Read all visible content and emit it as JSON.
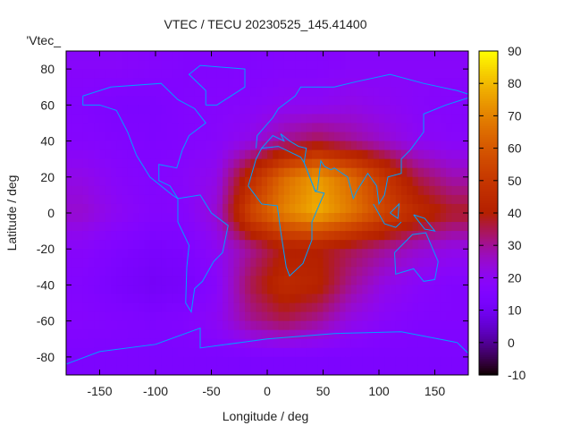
{
  "chart_data": {
    "type": "heatmap",
    "title": "VTEC / TECU 20230525_145.41400",
    "xlabel": "Longitude / deg",
    "ylabel": "Latitude / deg",
    "legend_label": "'Vtec_",
    "legend_placement": "top-left",
    "xlim": [
      -180,
      180
    ],
    "ylim": [
      -90,
      90
    ],
    "xticks": [
      -150,
      -100,
      -50,
      0,
      50,
      100,
      150
    ],
    "xtick_labels": [
      "-150",
      "-100",
      "-50",
      "0",
      "50",
      "100",
      "150"
    ],
    "yticks": [
      -80,
      -60,
      -40,
      -20,
      0,
      20,
      40,
      60,
      80
    ],
    "ytick_labels": [
      "-80",
      "-60",
      "-40",
      "-20",
      "0",
      "20",
      "40",
      "60",
      "80"
    ],
    "colorbar": {
      "range": [
        -10,
        90
      ],
      "ticks": [
        -10,
        0,
        10,
        20,
        30,
        40,
        50,
        60,
        70,
        80,
        90
      ],
      "tick_labels": [
        "-10",
        "0",
        "10",
        "20",
        "30",
        "40",
        "50",
        "60",
        "70",
        "80",
        "90"
      ]
    },
    "grid_lon_centers": [
      -165,
      -135,
      -105,
      -75,
      -45,
      -15,
      15,
      45,
      75,
      105,
      135,
      165
    ],
    "grid_lat_centers": [
      80,
      60,
      40,
      20,
      0,
      -20,
      -40,
      -60,
      -80
    ],
    "values": [
      [
        18,
        18,
        17,
        16,
        16,
        16,
        17,
        17,
        18,
        18,
        18,
        18
      ],
      [
        16,
        14,
        14,
        16,
        17,
        18,
        20,
        20,
        22,
        20,
        18,
        17
      ],
      [
        17,
        16,
        15,
        16,
        18,
        22,
        30,
        35,
        30,
        25,
        20,
        18
      ],
      [
        22,
        18,
        16,
        18,
        22,
        45,
        65,
        75,
        65,
        50,
        35,
        28
      ],
      [
        25,
        20,
        17,
        17,
        25,
        55,
        70,
        78,
        68,
        55,
        45,
        38
      ],
      [
        18,
        15,
        13,
        14,
        20,
        30,
        40,
        40,
        35,
        30,
        25,
        22
      ],
      [
        16,
        13,
        11,
        12,
        18,
        35,
        45,
        42,
        30,
        22,
        18,
        16
      ],
      [
        17,
        16,
        15,
        16,
        20,
        30,
        35,
        30,
        22,
        18,
        16,
        16
      ],
      [
        14,
        14,
        14,
        14,
        14,
        14,
        14,
        14,
        14,
        14,
        14,
        14
      ]
    ],
    "coastline_color": "#00a0ff"
  }
}
